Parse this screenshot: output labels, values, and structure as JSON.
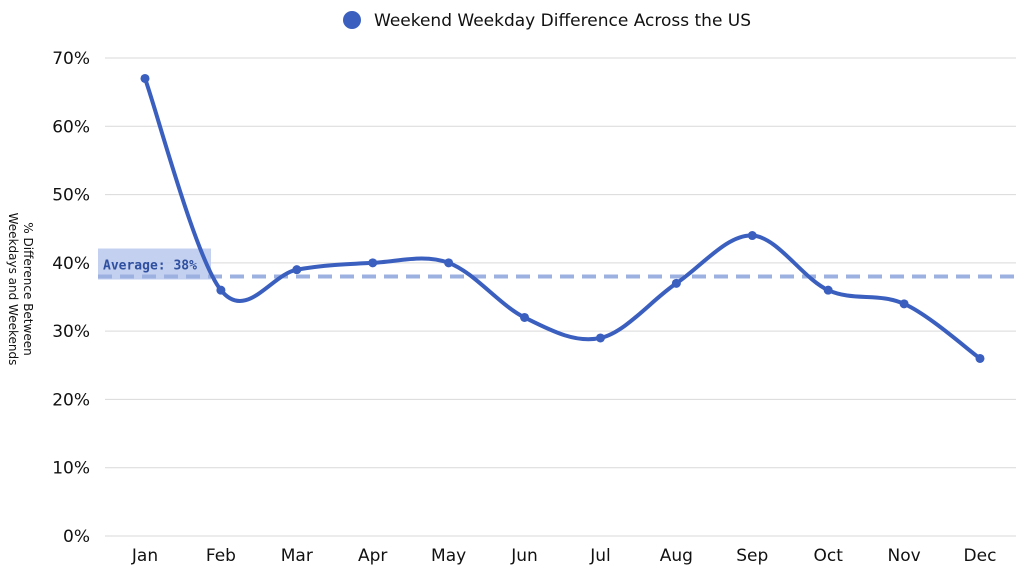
{
  "chart_data": {
    "type": "line",
    "categories": [
      "Jan",
      "Feb",
      "Mar",
      "Apr",
      "May",
      "Jun",
      "Jul",
      "Aug",
      "Sep",
      "Oct",
      "Nov",
      "Dec"
    ],
    "series": [
      {
        "name": "Weekend Weekday Difference Across the US",
        "values": [
          67,
          36,
          39,
          40,
          40,
          32,
          29,
          37,
          44,
          36,
          34,
          26
        ]
      }
    ],
    "ylabel_line1": "% Difference Between",
    "ylabel_line2": "Weekdays and Weekends",
    "ylim": [
      0,
      70
    ],
    "y_ticks": [
      "0%",
      "10%",
      "20%",
      "30%",
      "40%",
      "50%",
      "60%",
      "70%"
    ],
    "y_tick_values": [
      0,
      10,
      20,
      30,
      40,
      50,
      60,
      70
    ],
    "average": {
      "value": 38,
      "label": "Average: 38%"
    },
    "grid": true,
    "legend_position": "top-center",
    "colors": {
      "series": "#3a5fbf",
      "average_line": "#9db1e0",
      "average_box": "#b8c8ec"
    }
  }
}
